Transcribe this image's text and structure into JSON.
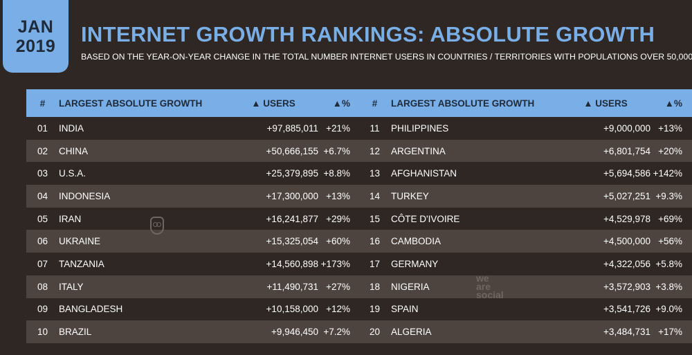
{
  "badge": {
    "month": "JAN",
    "year": "2019"
  },
  "title": "INTERNET GROWTH RANKINGS: ABSOLUTE GROWTH",
  "subtitle": "BASED ON THE YEAR-ON-YEAR CHANGE IN THE TOTAL NUMBER INTERNET USERS IN COUNTRIES / TERRITORIES WITH POPULATIONS OVER 50,000",
  "table_headers": {
    "num": "#",
    "name": "LARGEST ABSOLUTE GROWTH",
    "users": "▲ USERS",
    "pct": "▲%"
  },
  "left_rows": [
    {
      "num": "01",
      "name": "INDIA",
      "users": "+97,885,011",
      "pct": "+21%"
    },
    {
      "num": "02",
      "name": "CHINA",
      "users": "+50,666,155",
      "pct": "+6.7%"
    },
    {
      "num": "03",
      "name": "U.S.A.",
      "users": "+25,379,895",
      "pct": "+8.8%"
    },
    {
      "num": "04",
      "name": "INDONESIA",
      "users": "+17,300,000",
      "pct": "+13%"
    },
    {
      "num": "05",
      "name": "IRAN",
      "users": "+16,241,877",
      "pct": "+29%"
    },
    {
      "num": "06",
      "name": "UKRAINE",
      "users": "+15,325,054",
      "pct": "+60%"
    },
    {
      "num": "07",
      "name": "TANZANIA",
      "users": "+14,560,898",
      "pct": "+173%"
    },
    {
      "num": "08",
      "name": "ITALY",
      "users": "+11,490,731",
      "pct": "+27%"
    },
    {
      "num": "09",
      "name": "BANGLADESH",
      "users": "+10,158,000",
      "pct": "+12%"
    },
    {
      "num": "10",
      "name": "BRAZIL",
      "users": "+9,946,450",
      "pct": "+7.2%"
    }
  ],
  "right_rows": [
    {
      "num": "11",
      "name": "PHILIPPINES",
      "users": "+9,000,000",
      "pct": "+13%"
    },
    {
      "num": "12",
      "name": "ARGENTINA",
      "users": "+6,801,754",
      "pct": "+20%"
    },
    {
      "num": "13",
      "name": "AFGHANISTAN",
      "users": "+5,694,586",
      "pct": "+142%"
    },
    {
      "num": "14",
      "name": "TURKEY",
      "users": "+5,027,251",
      "pct": "+9.3%"
    },
    {
      "num": "15",
      "name": "CÔTE D'IVOIRE",
      "users": "+4,529,978",
      "pct": "+69%"
    },
    {
      "num": "16",
      "name": "CAMBODIA",
      "users": "+4,500,000",
      "pct": "+56%"
    },
    {
      "num": "17",
      "name": "GERMANY",
      "users": "+4,322,056",
      "pct": "+5.8%"
    },
    {
      "num": "18",
      "name": "NIGERIA",
      "users": "+3,572,903",
      "pct": "+3.8%"
    },
    {
      "num": "19",
      "name": "SPAIN",
      "users": "+3,541,726",
      "pct": "+9.0%"
    },
    {
      "num": "20",
      "name": "ALGERIA",
      "users": "+3,484,731",
      "pct": "+17%"
    }
  ],
  "watermark": {
    "line1": "we",
    "line2": "are",
    "line3": "social"
  },
  "colors": {
    "background": "#2e2724",
    "accent": "#79aee6",
    "row_alt": "#4d4440"
  }
}
